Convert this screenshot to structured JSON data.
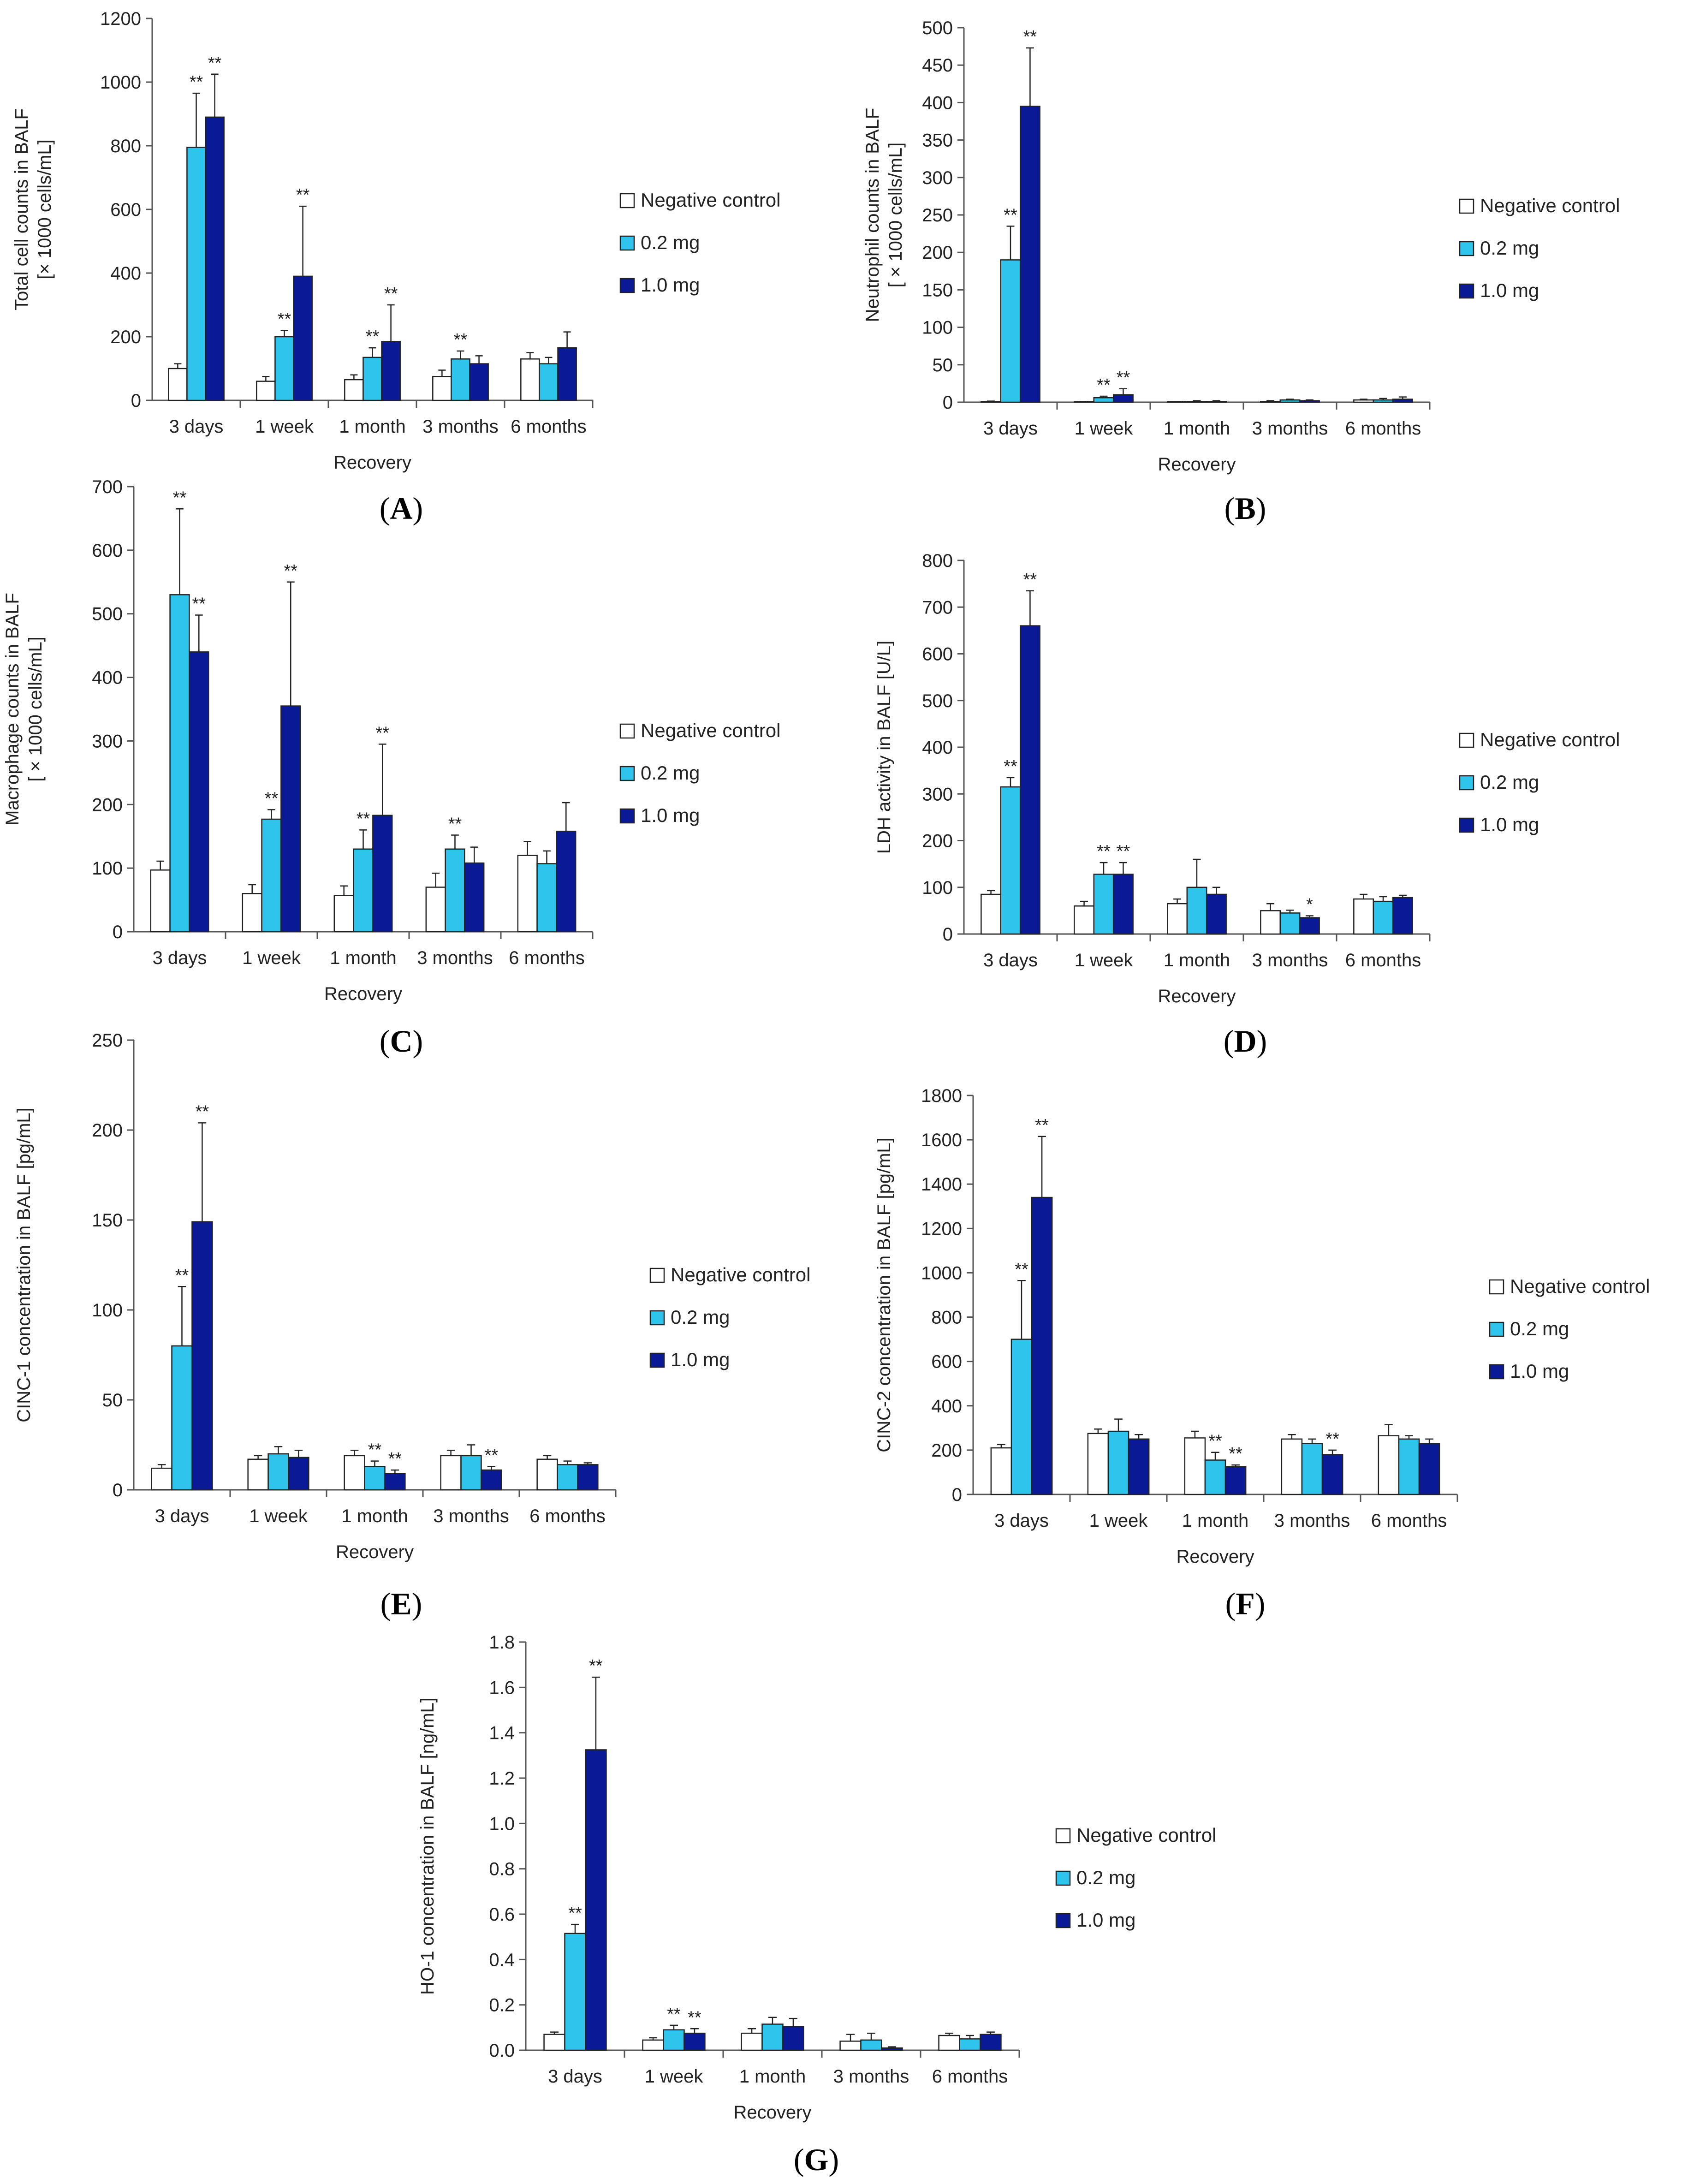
{
  "figure": {
    "x_axis_label": "Recovery",
    "legend": [
      "Negative control",
      "0.2 mg",
      "1.0 mg"
    ],
    "categories": [
      "3 days",
      "1 week",
      "1 month",
      "3 months",
      "6 months"
    ],
    "colors": {
      "neg": "#ffffff",
      "low": "#2ec4ec",
      "high": "#0a1a96",
      "edge": "#000000"
    }
  },
  "chart_data": [
    {
      "type": "bar",
      "panel": "A",
      "ylabel": [
        "Total cell counts in BALF",
        "[× 1000 cells/mL]"
      ],
      "ylim": [
        0,
        1200
      ],
      "yticks": [
        0,
        200,
        400,
        600,
        800,
        1000,
        1200
      ],
      "categories": [
        "3 days",
        "1 week",
        "1 month",
        "3 months",
        "6 months"
      ],
      "series": [
        {
          "name": "Negative control",
          "values": [
            100,
            60,
            65,
            75,
            130
          ],
          "errors": [
            15,
            15,
            15,
            20,
            20
          ],
          "marks": [
            "",
            "",
            "",
            "",
            ""
          ]
        },
        {
          "name": "0.2 mg",
          "values": [
            795,
            200,
            135,
            130,
            115
          ],
          "errors": [
            170,
            20,
            30,
            25,
            20
          ],
          "marks": [
            "**",
            "**",
            "**",
            "**",
            ""
          ]
        },
        {
          "name": "1.0 mg",
          "values": [
            890,
            390,
            185,
            115,
            165
          ],
          "errors": [
            135,
            220,
            115,
            25,
            50
          ],
          "marks": [
            "**",
            "**",
            "**",
            "",
            ""
          ]
        }
      ]
    },
    {
      "type": "bar",
      "panel": "B",
      "ylabel": [
        "Neutrophil counts in BALF",
        "[ × 1000 cells/mL]"
      ],
      "ylim": [
        0,
        500
      ],
      "yticks": [
        0,
        50,
        100,
        150,
        200,
        250,
        300,
        350,
        400,
        450,
        500
      ],
      "categories": [
        "3 days",
        "1 week",
        "1 month",
        "3 months",
        "6 months"
      ],
      "series": [
        {
          "name": "Negative control",
          "values": [
            1,
            0.5,
            0.5,
            1,
            3
          ],
          "errors": [
            0.5,
            0.5,
            0.5,
            1,
            1
          ],
          "marks": [
            "",
            "",
            "",
            "",
            ""
          ]
        },
        {
          "name": "0.2 mg",
          "values": [
            190,
            6,
            1,
            3,
            3
          ],
          "errors": [
            45,
            2,
            1,
            1,
            2
          ],
          "marks": [
            "**",
            "**",
            "",
            "",
            ""
          ]
        },
        {
          "name": "1.0 mg",
          "values": [
            395,
            10,
            1,
            2,
            4
          ],
          "errors": [
            78,
            8,
            1,
            1,
            3
          ],
          "marks": [
            "**",
            "**",
            "",
            "",
            ""
          ]
        }
      ]
    },
    {
      "type": "bar",
      "panel": "C",
      "ylabel": [
        "Macrophage counts in BALF",
        "[ × 1000 cells/mL]"
      ],
      "ylim": [
        0,
        700
      ],
      "yticks": [
        0,
        100,
        200,
        300,
        400,
        500,
        600,
        700
      ],
      "categories": [
        "3 days",
        "1 week",
        "1 month",
        "3 months",
        "6 months"
      ],
      "series": [
        {
          "name": "Negative control",
          "values": [
            97,
            60,
            57,
            70,
            120
          ],
          "errors": [
            14,
            14,
            15,
            22,
            22
          ],
          "marks": [
            "",
            "",
            "",
            "",
            ""
          ]
        },
        {
          "name": "0.2 mg",
          "values": [
            530,
            177,
            130,
            130,
            107
          ],
          "errors": [
            135,
            15,
            30,
            22,
            20
          ],
          "marks": [
            "**",
            "**",
            "**",
            "**",
            ""
          ]
        },
        {
          "name": "1.0 mg",
          "values": [
            440,
            355,
            183,
            108,
            158
          ],
          "errors": [
            58,
            195,
            112,
            25,
            45
          ],
          "marks": [
            "**",
            "**",
            "**",
            "",
            ""
          ]
        }
      ]
    },
    {
      "type": "bar",
      "panel": "D",
      "ylabel": [
        "LDH activity in BALF [U/L]"
      ],
      "ylim": [
        0,
        800
      ],
      "yticks": [
        0,
        100,
        200,
        300,
        400,
        500,
        600,
        700,
        800
      ],
      "categories": [
        "3 days",
        "1 week",
        "1 month",
        "3 months",
        "6 months"
      ],
      "series": [
        {
          "name": "Negative control",
          "values": [
            85,
            60,
            65,
            50,
            75
          ],
          "errors": [
            8,
            10,
            10,
            15,
            10
          ],
          "marks": [
            "",
            "",
            "",
            "",
            ""
          ]
        },
        {
          "name": "0.2 mg",
          "values": [
            315,
            128,
            100,
            45,
            70
          ],
          "errors": [
            20,
            25,
            60,
            6,
            10
          ],
          "marks": [
            "**",
            "**",
            "",
            "",
            ""
          ]
        },
        {
          "name": "1.0 mg",
          "values": [
            660,
            128,
            85,
            35,
            78
          ],
          "errors": [
            75,
            25,
            15,
            4,
            5
          ],
          "marks": [
            "**",
            "**",
            "",
            "*",
            ""
          ]
        }
      ]
    },
    {
      "type": "bar",
      "panel": "E",
      "ylabel": [
        "CINC-1  concentration in BALF [pg/mL]"
      ],
      "ylim": [
        0,
        250
      ],
      "yticks": [
        0,
        50,
        100,
        150,
        200,
        250
      ],
      "categories": [
        "3 days",
        "1 week",
        "1 month",
        "3 months",
        "6 months"
      ],
      "series": [
        {
          "name": "Negative control",
          "values": [
            12,
            17,
            19,
            19,
            17
          ],
          "errors": [
            2,
            2,
            3,
            3,
            2
          ],
          "marks": [
            "",
            "",
            "",
            "",
            ""
          ]
        },
        {
          "name": "0.2 mg",
          "values": [
            80,
            20,
            13,
            19,
            14
          ],
          "errors": [
            33,
            4,
            3,
            6,
            2
          ],
          "marks": [
            "**",
            "",
            "**",
            "",
            ""
          ]
        },
        {
          "name": "1.0 mg",
          "values": [
            149,
            18,
            9,
            11,
            14
          ],
          "errors": [
            55,
            4,
            2,
            2,
            1
          ],
          "marks": [
            "**",
            "",
            "**",
            "**",
            ""
          ]
        }
      ]
    },
    {
      "type": "bar",
      "panel": "F",
      "ylabel": [
        "CINC-2  concentration in BALF [pg/mL]"
      ],
      "ylim": [
        0,
        1800
      ],
      "yticks": [
        0,
        200,
        400,
        600,
        800,
        1000,
        1200,
        1400,
        1600,
        1800
      ],
      "categories": [
        "3 days",
        "1 week",
        "1 month",
        "3 months",
        "6 months"
      ],
      "series": [
        {
          "name": "Negative control",
          "values": [
            210,
            275,
            255,
            250,
            265
          ],
          "errors": [
            15,
            20,
            30,
            20,
            50
          ],
          "marks": [
            "",
            "",
            "",
            "",
            ""
          ]
        },
        {
          "name": "0.2 mg",
          "values": [
            700,
            285,
            155,
            230,
            250
          ],
          "errors": [
            265,
            55,
            35,
            20,
            15
          ],
          "marks": [
            "**",
            "",
            "**",
            "",
            ""
          ]
        },
        {
          "name": "1.0 mg",
          "values": [
            1340,
            250,
            125,
            180,
            230
          ],
          "errors": [
            275,
            20,
            8,
            20,
            20
          ],
          "marks": [
            "**",
            "",
            "**",
            "**",
            ""
          ]
        }
      ]
    },
    {
      "type": "bar",
      "panel": "G",
      "ylabel": [
        "HO-1 concentration in BALF [ng/mL]"
      ],
      "ylim": [
        0,
        1.8
      ],
      "yticks": [
        "0.0",
        "0.2",
        "0.4",
        "0.6",
        "0.8",
        "1.0",
        "1.2",
        "1.4",
        "1.6",
        "1.8"
      ],
      "categories": [
        "3 days",
        "1 week",
        "1 month",
        "3 months",
        "6 months"
      ],
      "series": [
        {
          "name": "Negative control",
          "values": [
            0.07,
            0.045,
            0.075,
            0.04,
            0.065
          ],
          "errors": [
            0.01,
            0.01,
            0.02,
            0.03,
            0.01
          ],
          "marks": [
            "",
            "",
            "",
            "",
            ""
          ]
        },
        {
          "name": "0.2 mg",
          "values": [
            0.515,
            0.09,
            0.115,
            0.045,
            0.05
          ],
          "errors": [
            0.04,
            0.02,
            0.03,
            0.03,
            0.015
          ],
          "marks": [
            "**",
            "**",
            "",
            "",
            ""
          ]
        },
        {
          "name": "1.0 mg",
          "values": [
            1.325,
            0.075,
            0.105,
            0.01,
            0.07
          ],
          "errors": [
            0.32,
            0.02,
            0.035,
            0.005,
            0.01
          ],
          "marks": [
            "**",
            "**",
            "",
            "",
            ""
          ]
        }
      ]
    }
  ]
}
